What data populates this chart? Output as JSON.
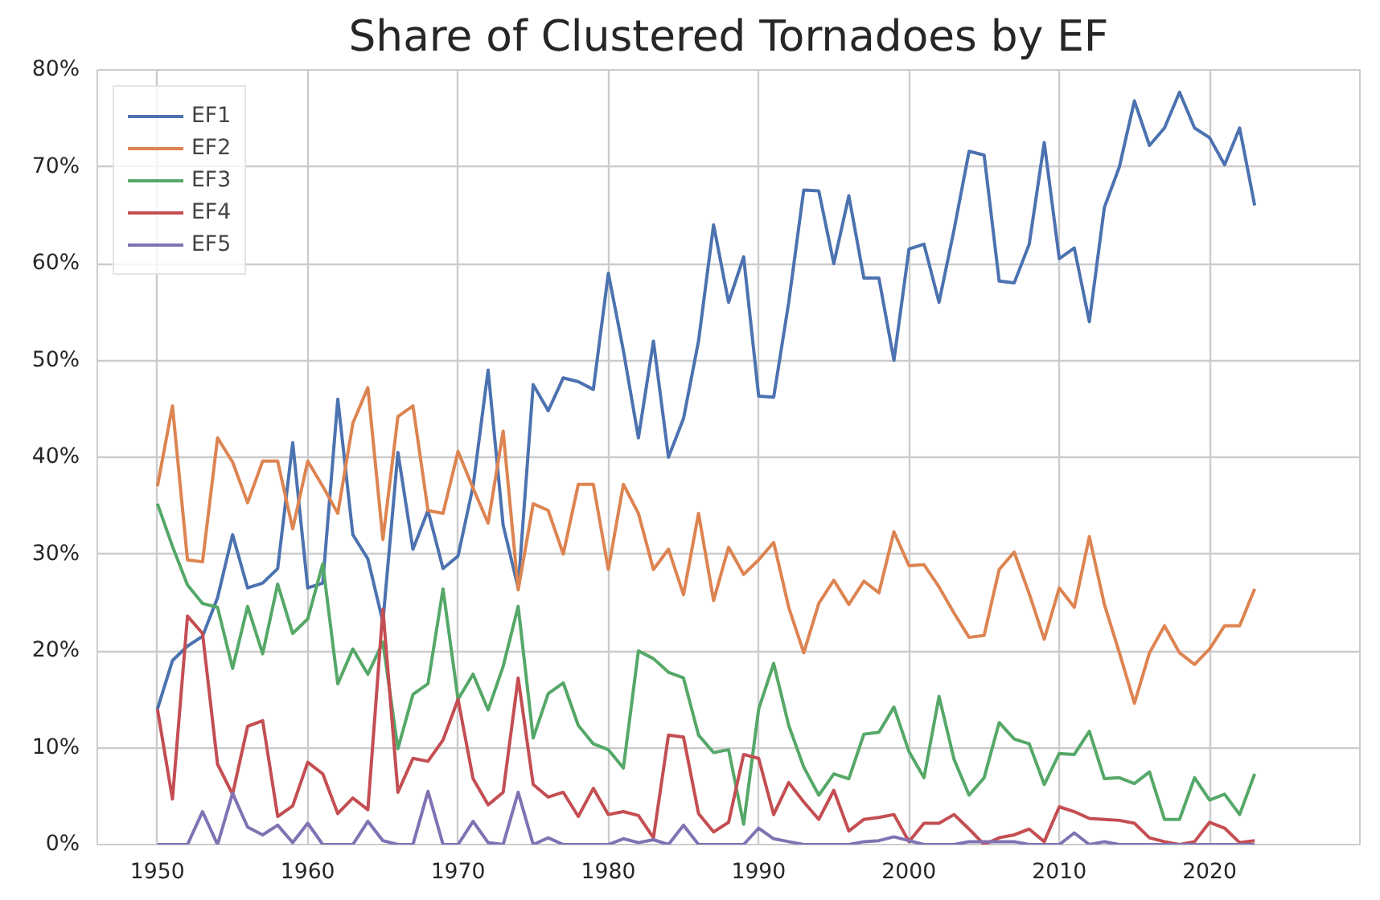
{
  "chart_data": {
    "type": "line",
    "title": "Share of Clustered Tornadoes by EF",
    "x": [
      1950,
      1951,
      1952,
      1953,
      1954,
      1955,
      1956,
      1957,
      1958,
      1959,
      1960,
      1961,
      1962,
      1963,
      1964,
      1965,
      1966,
      1967,
      1968,
      1969,
      1970,
      1971,
      1972,
      1973,
      1974,
      1975,
      1976,
      1977,
      1978,
      1979,
      1980,
      1981,
      1982,
      1983,
      1984,
      1985,
      1986,
      1987,
      1988,
      1989,
      1990,
      1991,
      1992,
      1993,
      1994,
      1995,
      1996,
      1997,
      1998,
      1999,
      2000,
      2001,
      2002,
      2003,
      2004,
      2005,
      2006,
      2007,
      2008,
      2009,
      2010,
      2011,
      2012,
      2013,
      2014,
      2015,
      2016,
      2017,
      2018,
      2019,
      2020,
      2021,
      2022,
      2023
    ],
    "series": [
      {
        "name": "EF1",
        "color": "#4c72b0",
        "values": [
          14,
          19,
          20.5,
          21.5,
          25.5,
          32,
          26.5,
          27,
          28.5,
          41.5,
          26.5,
          27,
          46,
          32,
          29.5,
          23,
          40.5,
          30.5,
          34.5,
          28.5,
          29.8,
          37,
          49,
          33,
          26.5,
          47.5,
          44.8,
          48.2,
          47.8,
          47,
          59,
          51,
          42,
          52,
          40,
          44,
          52,
          64,
          56,
          60.7,
          46.3,
          46.2,
          56,
          67.6,
          67.5,
          60,
          67,
          58.5,
          58.5,
          50,
          61.5,
          62,
          56,
          63.5,
          71.6,
          71.2,
          58.2,
          58,
          62,
          72.5,
          60.5,
          61.6,
          54,
          65.8,
          70,
          76.8,
          72.2,
          74,
          77.7,
          74,
          73,
          70.2,
          74,
          66
        ]
      },
      {
        "name": "EF2",
        "color": "#dd8452",
        "values": [
          37,
          45.3,
          29.4,
          29.2,
          42,
          39.5,
          35.3,
          39.6,
          39.6,
          32.6,
          39.6,
          37,
          34.2,
          43.5,
          47.2,
          31.5,
          44.2,
          45.3,
          34.5,
          34.2,
          40.6,
          36.8,
          33.2,
          42.7,
          26.3,
          35.2,
          34.5,
          30,
          37.2,
          37.2,
          28.4,
          37.2,
          34.2,
          28.4,
          30.5,
          25.8,
          34.2,
          25.2,
          30.7,
          27.9,
          29.4,
          31.2,
          24.5,
          19.8,
          24.9,
          27.3,
          24.8,
          27.2,
          26,
          32.3,
          28.8,
          28.9,
          26.6,
          23.9,
          21.4,
          21.6,
          28.4,
          30.2,
          25.9,
          21.2,
          26.5,
          24.5,
          31.8,
          24.8,
          19.8,
          14.6,
          19.8,
          22.6,
          19.8,
          18.6,
          20.2,
          22.6,
          22.6,
          26.4
        ]
      },
      {
        "name": "EF3",
        "color": "#55a868",
        "values": [
          35.2,
          30.8,
          26.8,
          24.9,
          24.5,
          18.2,
          24.6,
          19.7,
          26.9,
          21.8,
          23.3,
          29,
          16.6,
          20.2,
          17.6,
          20.9,
          9.9,
          15.5,
          16.6,
          26.4,
          15,
          17.6,
          13.9,
          18.4,
          24.6,
          11,
          15.6,
          16.7,
          12.3,
          10.4,
          9.8,
          7.9,
          20,
          19.2,
          17.8,
          17.2,
          11.3,
          9.5,
          9.8,
          2.1,
          14,
          18.7,
          12.3,
          8,
          5.1,
          7.3,
          6.8,
          11.4,
          11.6,
          14.2,
          9.6,
          6.9,
          15.3,
          8.8,
          5.1,
          6.9,
          12.6,
          10.9,
          10.4,
          6.2,
          9.4,
          9.3,
          11.7,
          6.8,
          6.9,
          6.3,
          7.5,
          2.6,
          2.6,
          6.9,
          4.6,
          5.2,
          3.1,
          7.3
        ]
      },
      {
        "name": "EF4",
        "color": "#c44e52",
        "values": [
          14,
          4.7,
          23.6,
          21.8,
          8.3,
          5.2,
          12.2,
          12.8,
          2.9,
          4,
          8.5,
          7.3,
          3.2,
          4.8,
          3.6,
          24.3,
          5.4,
          8.9,
          8.6,
          10.8,
          15,
          6.8,
          4.1,
          5.4,
          17.2,
          6.2,
          4.9,
          5.4,
          2.9,
          5.8,
          3.1,
          3.4,
          3,
          0.7,
          11.3,
          11.1,
          3.2,
          1.3,
          2.3,
          9.3,
          8.9,
          3.1,
          6.4,
          4.4,
          2.6,
          5.6,
          1.4,
          2.6,
          2.8,
          3.1,
          0.3,
          2.2,
          2.2,
          3.1,
          1.6,
          0,
          0.7,
          1,
          1.6,
          0.3,
          3.9,
          3.4,
          2.7,
          2.6,
          2.5,
          2.2,
          0.7,
          0.3,
          0,
          0.3,
          2.3,
          1.7,
          0.2,
          0.4
        ]
      },
      {
        "name": "EF5",
        "color": "#8172b3",
        "values": [
          0,
          0,
          0,
          3.4,
          0,
          5.3,
          1.8,
          1,
          2,
          0.2,
          2.2,
          0,
          0,
          0,
          2.4,
          0.4,
          0,
          0,
          5.5,
          0,
          0,
          2.4,
          0.2,
          0,
          5.4,
          0,
          0.7,
          0,
          0,
          0,
          0,
          0.6,
          0.2,
          0.5,
          0,
          2,
          0,
          0,
          0,
          0,
          1.7,
          0.6,
          0.3,
          0,
          0,
          0,
          0,
          0.3,
          0.4,
          0.8,
          0.4,
          0,
          0,
          0,
          0.3,
          0.3,
          0.3,
          0.3,
          0,
          0,
          0,
          1.2,
          0,
          0.3,
          0,
          0,
          0,
          0,
          0,
          0,
          0,
          0,
          0,
          0
        ]
      }
    ],
    "xlim": [
      1946,
      2030
    ],
    "ylim": [
      0,
      80
    ],
    "xticks": [
      1950,
      1960,
      1970,
      1980,
      1990,
      2000,
      2010,
      2020
    ],
    "yticks": [
      {
        "value": 0,
        "label": "0%"
      },
      {
        "value": 10,
        "label": "10%"
      },
      {
        "value": 20,
        "label": "20%"
      },
      {
        "value": 30,
        "label": "30%"
      },
      {
        "value": 40,
        "label": "40%"
      },
      {
        "value": 50,
        "label": "50%"
      },
      {
        "value": 60,
        "label": "60%"
      },
      {
        "value": 70,
        "label": "70%"
      },
      {
        "value": 80,
        "label": "80%"
      }
    ],
    "grid": true,
    "legend": "top left"
  }
}
